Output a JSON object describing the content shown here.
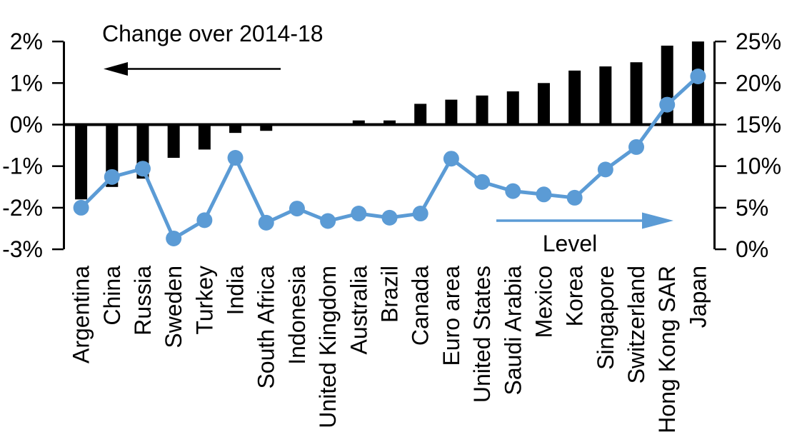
{
  "chart_data": {
    "type": "bar+line combo",
    "title": "",
    "categories": [
      "Argentina",
      "China",
      "Russia",
      "Sweden",
      "Turkey",
      "India",
      "South Africa",
      "Indonesia",
      "United Kingdom",
      "Australia",
      "Brazil",
      "Canada",
      "Euro area",
      "United States",
      "Saudi Arabia",
      "Mexico",
      "Korea",
      "Singapore",
      "Switzerland",
      "Hong Kong SAR",
      "Japan"
    ],
    "series": [
      {
        "name": "Change over 2014-18",
        "type": "bar",
        "axis": "left",
        "color": "#000000",
        "values": [
          -1.8,
          -1.5,
          -1.3,
          -0.8,
          -0.6,
          -0.2,
          -0.15,
          0.0,
          0.0,
          0.1,
          0.1,
          0.5,
          0.6,
          0.7,
          0.8,
          1.0,
          1.3,
          1.4,
          1.5,
          1.9,
          2.0
        ]
      },
      {
        "name": "Level",
        "type": "line",
        "axis": "right",
        "color": "#5B9BD5",
        "values": [
          5.0,
          8.7,
          9.7,
          1.3,
          3.5,
          11.0,
          3.2,
          4.9,
          3.4,
          4.3,
          3.8,
          4.3,
          10.9,
          8.1,
          7.0,
          6.6,
          6.2,
          9.6,
          12.3,
          17.4,
          20.8
        ]
      }
    ],
    "left_axis": {
      "range": [
        -3,
        2
      ],
      "tick_values": [
        2,
        1,
        0,
        -1,
        -2,
        -3
      ],
      "tick_labels": [
        "2%",
        "1%",
        "0%",
        "-1%",
        "-2%",
        "-3%"
      ]
    },
    "right_axis": {
      "range": [
        0,
        25
      ],
      "tick_values": [
        25,
        20,
        15,
        10,
        5,
        0
      ],
      "tick_labels": [
        "25%",
        "20%",
        "15%",
        "10%",
        "5%",
        "0%"
      ]
    },
    "annotations": {
      "change_label": "Change over 2014-18",
      "level_label": "Level"
    },
    "colors": {
      "bar": "#000000",
      "line": "#5B9BD5"
    },
    "grid": false,
    "legend_position": "in-plot annotations with direction arrows"
  }
}
